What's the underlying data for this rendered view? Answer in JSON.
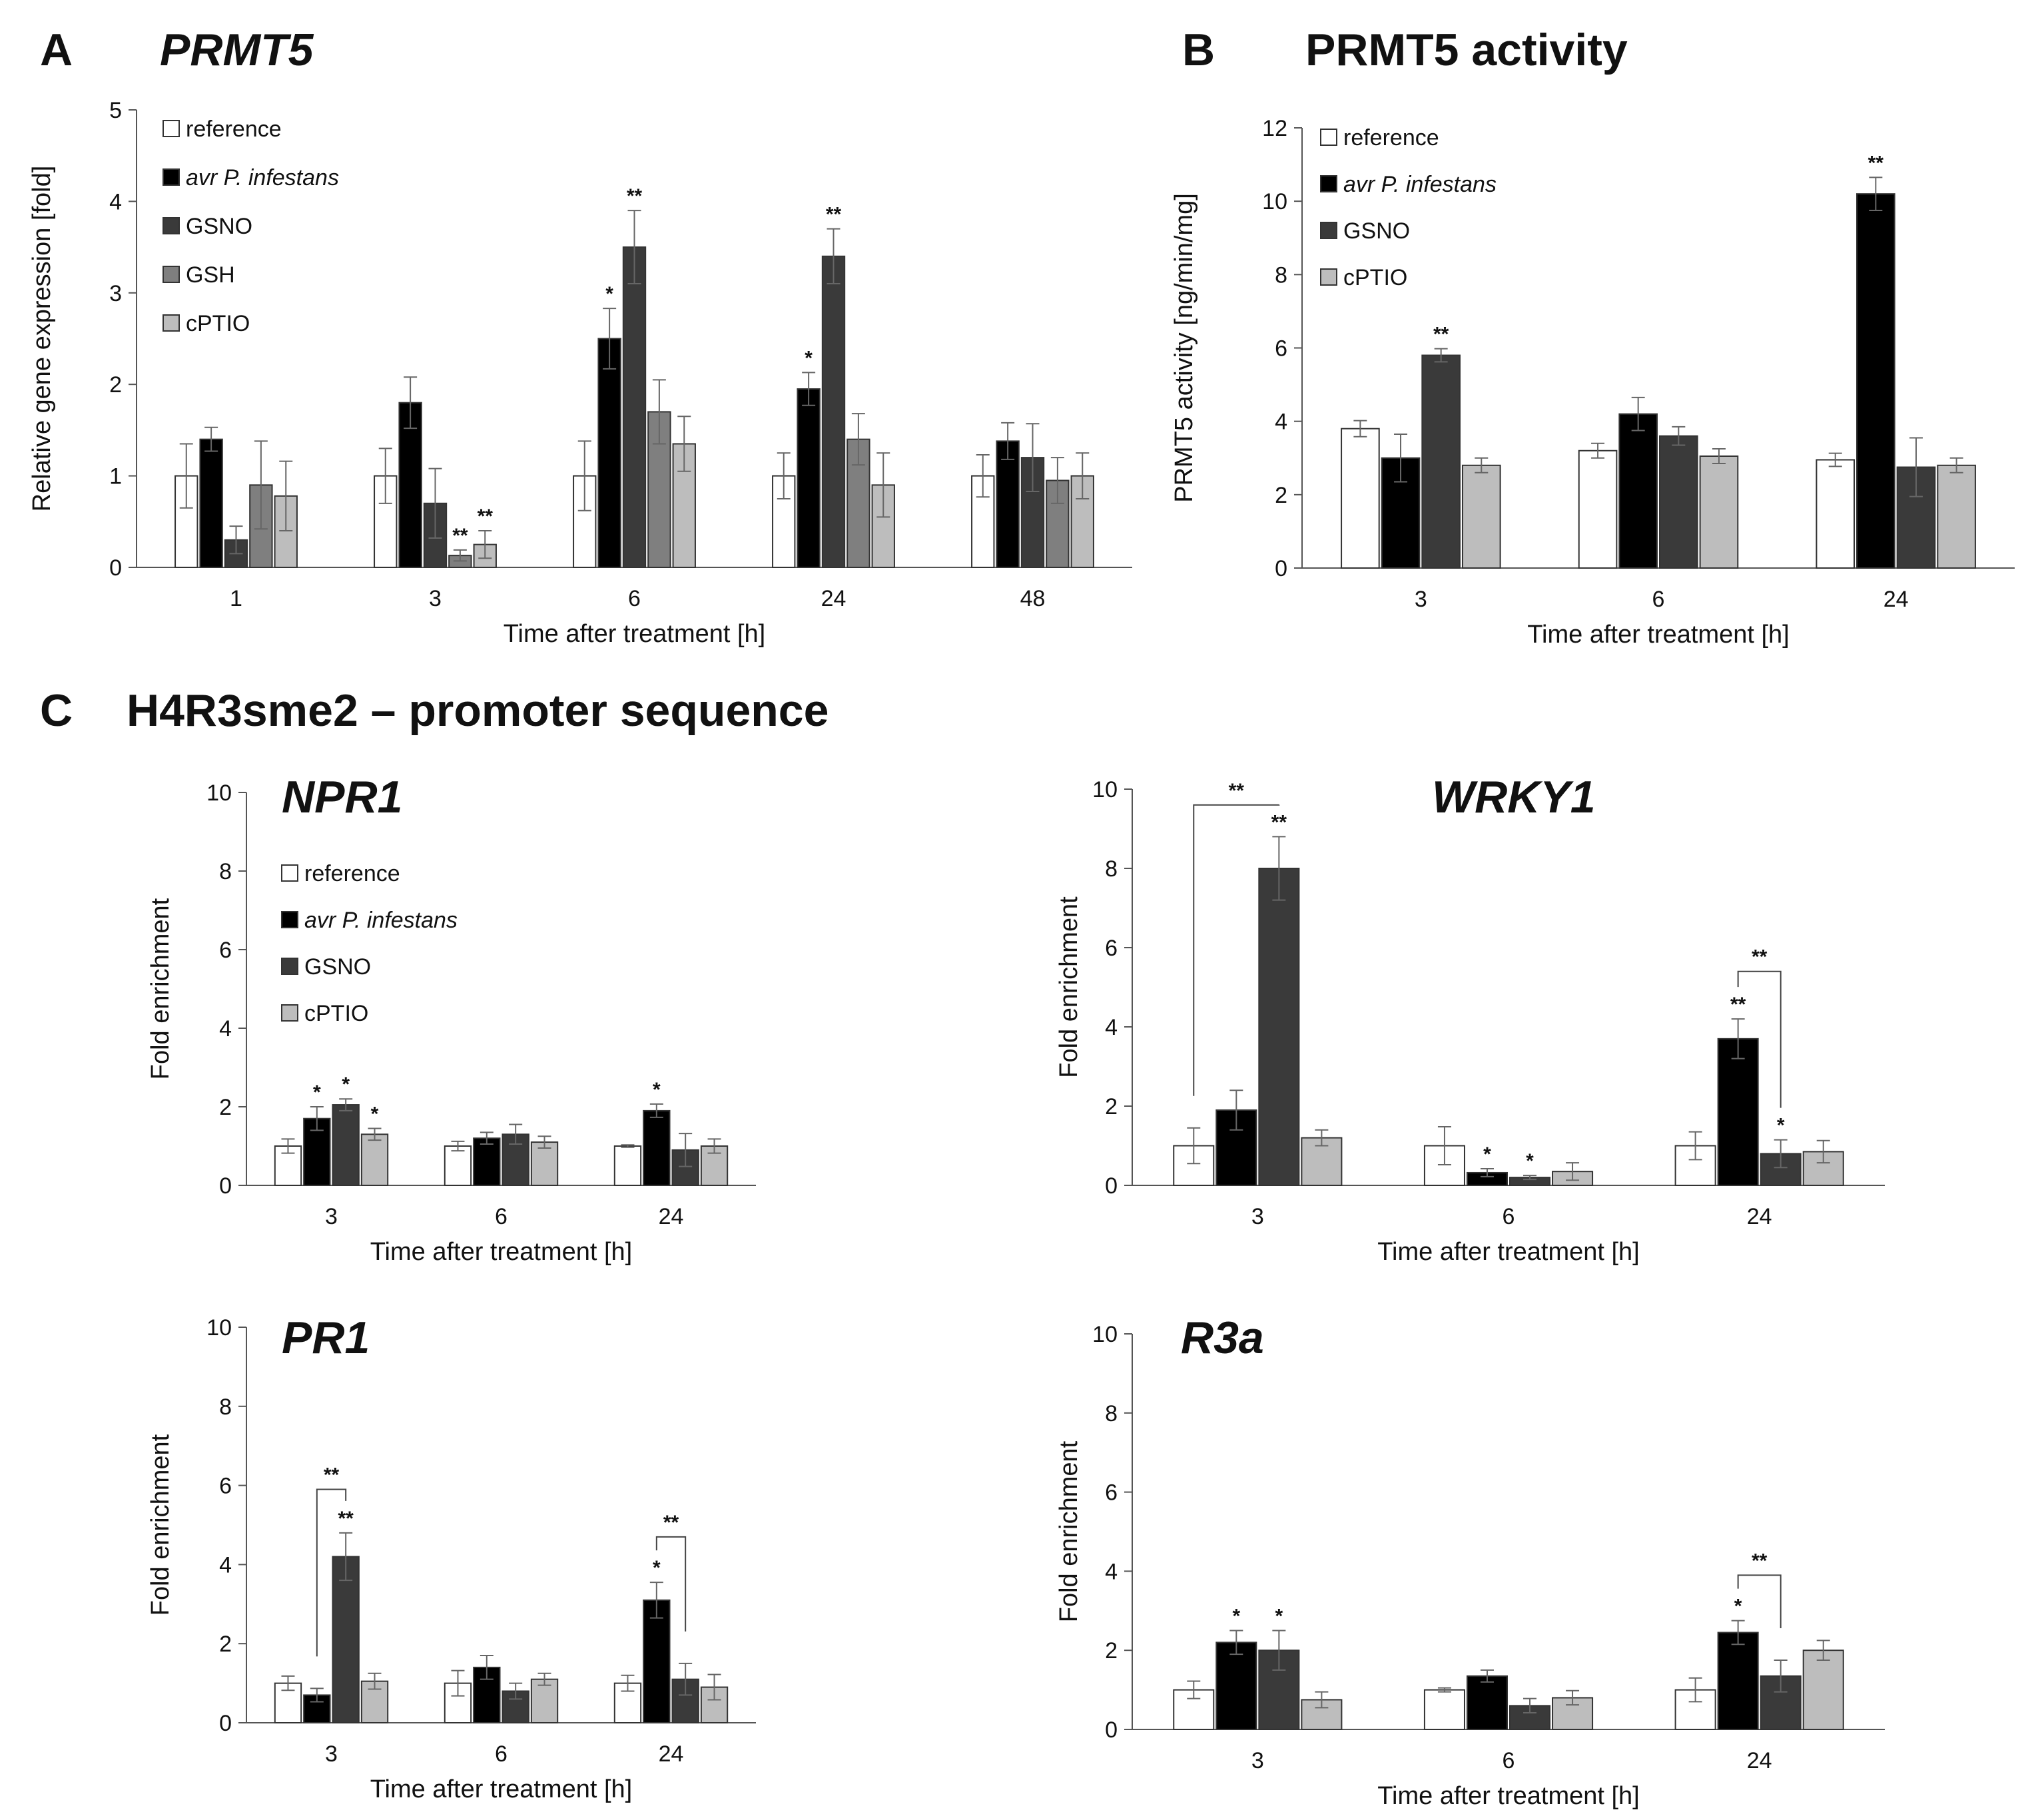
{
  "panels": {
    "A": {
      "letter": "A",
      "title": "PRMT5"
    },
    "B": {
      "letter": "B",
      "title": "PRMT5 activity"
    },
    "C": {
      "letter": "C",
      "title": "H4R3sme2 – promoter sequence"
    }
  },
  "colors": {
    "reference": "#ffffff",
    "avr": "#000000",
    "gsno": "#3a3a3a",
    "gsh": "#7f7f7f",
    "cptio": "#bdbdbd"
  },
  "chart_data": [
    {
      "id": "A",
      "type": "bar",
      "title": "PRMT5",
      "xlabel": "Time after treatment [h]",
      "ylabel": "Relative gene expression [fold]",
      "ylim": [
        0,
        5
      ],
      "yticks": [
        0,
        1,
        2,
        3,
        4,
        5
      ],
      "categories": [
        "1",
        "3",
        "6",
        "24",
        "48"
      ],
      "series": [
        {
          "name": "reference",
          "italic": false,
          "color": "#ffffff",
          "values": [
            1.0,
            1.0,
            1.0,
            1.0,
            1.0
          ],
          "errors": [
            0.35,
            0.3,
            0.38,
            0.25,
            0.23
          ],
          "sig": [
            "",
            "",
            "",
            "",
            ""
          ]
        },
        {
          "name": "avr P. infestans",
          "italic": true,
          "color": "#000000",
          "values": [
            1.4,
            1.8,
            2.5,
            1.95,
            1.38
          ],
          "errors": [
            0.13,
            0.28,
            0.33,
            0.18,
            0.2
          ],
          "sig": [
            "",
            "",
            "*",
            "*",
            ""
          ]
        },
        {
          "name": "GSNO",
          "italic": false,
          "color": "#3a3a3a",
          "values": [
            0.3,
            0.7,
            3.5,
            3.4,
            1.2
          ],
          "errors": [
            0.15,
            0.38,
            0.4,
            0.3,
            0.37
          ],
          "sig": [
            "",
            "",
            "**",
            "**",
            ""
          ]
        },
        {
          "name": "GSH",
          "italic": false,
          "color": "#7f7f7f",
          "values": [
            0.9,
            0.13,
            1.7,
            1.4,
            0.95
          ],
          "errors": [
            0.48,
            0.06,
            0.35,
            0.28,
            0.25
          ],
          "sig": [
            "",
            "**",
            "",
            "",
            ""
          ]
        },
        {
          "name": "cPTIO",
          "italic": false,
          "color": "#bdbdbd",
          "values": [
            0.78,
            0.25,
            1.35,
            0.9,
            1.0
          ],
          "errors": [
            0.38,
            0.15,
            0.3,
            0.35,
            0.25
          ],
          "sig": [
            "",
            "**",
            "",
            "",
            ""
          ]
        }
      ]
    },
    {
      "id": "B",
      "type": "bar",
      "title": "PRMT5 activity",
      "xlabel": "Time after treatment [h]",
      "ylabel": "PRMT5 activity [ng/min/mg]",
      "ylim": [
        0,
        12
      ],
      "yticks": [
        0,
        2,
        4,
        6,
        8,
        10,
        12
      ],
      "categories": [
        "3",
        "6",
        "24"
      ],
      "series": [
        {
          "name": "reference",
          "italic": false,
          "color": "#ffffff",
          "values": [
            3.8,
            3.2,
            2.95
          ],
          "errors": [
            0.22,
            0.2,
            0.18
          ],
          "sig": [
            "",
            "",
            ""
          ]
        },
        {
          "name": "avr P. infestans",
          "italic": true,
          "color": "#000000",
          "values": [
            3.0,
            4.2,
            10.2
          ],
          "errors": [
            0.65,
            0.45,
            0.45
          ],
          "sig": [
            "",
            "",
            "**"
          ]
        },
        {
          "name": "GSNO",
          "italic": false,
          "color": "#3a3a3a",
          "values": [
            5.8,
            3.6,
            2.75
          ],
          "errors": [
            0.18,
            0.25,
            0.8
          ],
          "sig": [
            "**",
            "",
            ""
          ]
        },
        {
          "name": "cPTIO",
          "italic": false,
          "color": "#bdbdbd",
          "values": [
            2.8,
            3.05,
            2.8
          ],
          "errors": [
            0.2,
            0.2,
            0.2
          ],
          "sig": [
            "",
            "",
            ""
          ]
        }
      ]
    },
    {
      "id": "NPR1",
      "type": "bar",
      "title": "NPR1",
      "xlabel": "Time after treatment [h]",
      "ylabel": "Fold enrichment",
      "ylim": [
        0,
        10
      ],
      "yticks": [
        0,
        2,
        4,
        6,
        8,
        10
      ],
      "categories": [
        "3",
        "6",
        "24"
      ],
      "series": [
        {
          "name": "reference",
          "italic": false,
          "color": "#ffffff",
          "values": [
            1.0,
            1.0,
            1.0
          ],
          "errors": [
            0.18,
            0.12,
            0.03
          ],
          "sig": [
            "",
            "",
            ""
          ]
        },
        {
          "name": "avr P. infestans",
          "italic": true,
          "color": "#000000",
          "values": [
            1.7,
            1.2,
            1.9
          ],
          "errors": [
            0.3,
            0.15,
            0.17
          ],
          "sig": [
            "*",
            "",
            "*"
          ]
        },
        {
          "name": "GSNO",
          "italic": false,
          "color": "#3a3a3a",
          "values": [
            2.05,
            1.3,
            0.9
          ],
          "errors": [
            0.15,
            0.25,
            0.42
          ],
          "sig": [
            "*",
            "",
            ""
          ]
        },
        {
          "name": "cPTIO",
          "italic": false,
          "color": "#bdbdbd",
          "values": [
            1.3,
            1.1,
            1.0
          ],
          "errors": [
            0.15,
            0.15,
            0.18
          ],
          "sig": [
            "*",
            "",
            ""
          ]
        }
      ],
      "brackets": []
    },
    {
      "id": "WRKY1",
      "type": "bar",
      "title": "WRKY1",
      "xlabel": "Time after treatment [h]",
      "ylabel": "Fold enrichment",
      "ylim": [
        0,
        10
      ],
      "yticks": [
        0,
        2,
        4,
        6,
        8,
        10
      ],
      "categories": [
        "3",
        "6",
        "24"
      ],
      "series": [
        {
          "name": "reference",
          "italic": false,
          "color": "#ffffff",
          "values": [
            1.0,
            1.0,
            1.0
          ],
          "errors": [
            0.45,
            0.48,
            0.35
          ],
          "sig": [
            "",
            "",
            ""
          ]
        },
        {
          "name": "avr P. infestans",
          "italic": true,
          "color": "#000000",
          "values": [
            1.9,
            0.32,
            3.7
          ],
          "errors": [
            0.5,
            0.1,
            0.5
          ],
          "sig": [
            "",
            "*",
            "**"
          ]
        },
        {
          "name": "GSNO",
          "italic": false,
          "color": "#3a3a3a",
          "values": [
            8.0,
            0.2,
            0.8
          ],
          "errors": [
            0.8,
            0.05,
            0.35
          ],
          "sig": [
            "**",
            "*",
            "*"
          ]
        },
        {
          "name": "cPTIO",
          "italic": false,
          "color": "#bdbdbd",
          "values": [
            1.2,
            0.35,
            0.85
          ],
          "errors": [
            0.2,
            0.22,
            0.28
          ],
          "sig": [
            "",
            "",
            ""
          ]
        }
      ],
      "brackets": [
        {
          "category": 0,
          "from_series": 0,
          "to_series": 2,
          "level": 9.6,
          "label": "**"
        },
        {
          "category": 2,
          "from_series": 1,
          "to_series": 2,
          "level": 5.4,
          "label": "**"
        }
      ]
    },
    {
      "id": "PR1",
      "type": "bar",
      "title": "PR1",
      "xlabel": "Time after treatment [h]",
      "ylabel": "Fold enrichment",
      "ylim": [
        0,
        10
      ],
      "yticks": [
        0,
        2,
        4,
        6,
        8,
        10
      ],
      "categories": [
        "3",
        "6",
        "24"
      ],
      "series": [
        {
          "name": "reference",
          "italic": false,
          "color": "#ffffff",
          "values": [
            1.0,
            1.0,
            1.0
          ],
          "errors": [
            0.18,
            0.32,
            0.2
          ],
          "sig": [
            "",
            "",
            ""
          ]
        },
        {
          "name": "avr P. infestans",
          "italic": true,
          "color": "#000000",
          "values": [
            0.7,
            1.4,
            3.1
          ],
          "errors": [
            0.17,
            0.3,
            0.45
          ],
          "sig": [
            "",
            "",
            "*"
          ]
        },
        {
          "name": "GSNO",
          "italic": false,
          "color": "#3a3a3a",
          "values": [
            4.2,
            0.8,
            1.1
          ],
          "errors": [
            0.6,
            0.2,
            0.4
          ],
          "sig": [
            "**",
            "",
            ""
          ]
        },
        {
          "name": "cPTIO",
          "italic": false,
          "color": "#bdbdbd",
          "values": [
            1.05,
            1.1,
            0.9
          ],
          "errors": [
            0.2,
            0.15,
            0.32
          ],
          "sig": [
            "",
            "",
            ""
          ]
        }
      ],
      "brackets": [
        {
          "category": 0,
          "from_series": 1,
          "to_series": 2,
          "level": 5.9,
          "label": "**"
        },
        {
          "category": 2,
          "from_series": 1,
          "to_series": 2,
          "level": 4.7,
          "label": "**"
        }
      ]
    },
    {
      "id": "R3a",
      "type": "bar",
      "title": "R3a",
      "xlabel": "Time after treatment [h]",
      "ylabel": "Fold enrichment",
      "ylim": [
        0,
        10
      ],
      "yticks": [
        0,
        2,
        4,
        6,
        8,
        10
      ],
      "categories": [
        "3",
        "6",
        "24"
      ],
      "series": [
        {
          "name": "reference",
          "italic": false,
          "color": "#ffffff",
          "values": [
            1.0,
            1.0,
            1.0
          ],
          "errors": [
            0.22,
            0.05,
            0.3
          ],
          "sig": [
            "",
            "",
            ""
          ]
        },
        {
          "name": "avr P. infestans",
          "italic": true,
          "color": "#000000",
          "values": [
            2.2,
            1.35,
            2.45
          ],
          "errors": [
            0.3,
            0.15,
            0.3
          ],
          "sig": [
            "*",
            "",
            "*"
          ]
        },
        {
          "name": "GSNO",
          "italic": false,
          "color": "#3a3a3a",
          "values": [
            2.0,
            0.6,
            1.35
          ],
          "errors": [
            0.5,
            0.18,
            0.4
          ],
          "sig": [
            "*",
            "",
            ""
          ]
        },
        {
          "name": "cPTIO",
          "italic": false,
          "color": "#bdbdbd",
          "values": [
            0.75,
            0.8,
            2.0
          ],
          "errors": [
            0.2,
            0.18,
            0.25
          ],
          "sig": [
            "",
            "",
            ""
          ]
        }
      ],
      "brackets": [
        {
          "category": 2,
          "from_series": 1,
          "to_series": 2,
          "level": 3.9,
          "label": "**"
        }
      ]
    }
  ]
}
